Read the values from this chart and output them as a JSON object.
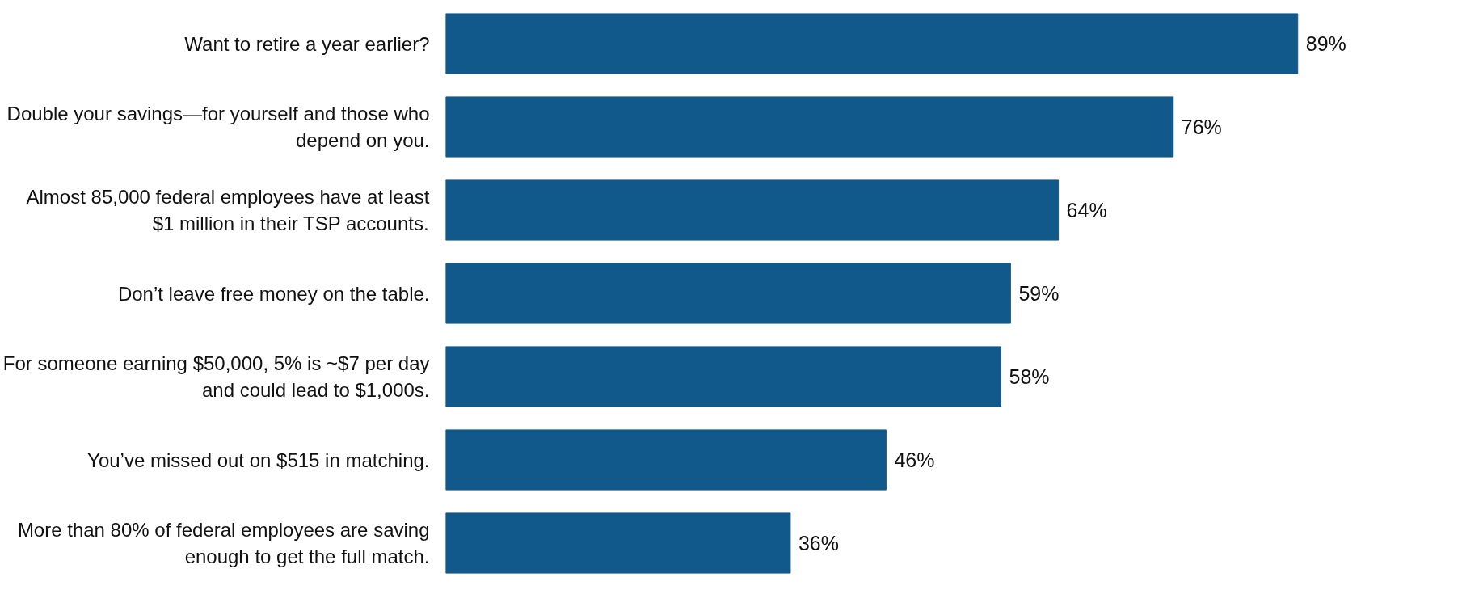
{
  "chart_data": {
    "type": "bar",
    "orientation": "horizontal",
    "color": "#11598a",
    "categories": [
      "Want to retire a year earlier?",
      "Double your savings—for yourself and those who depend on you.",
      "Almost 85,000 federal employees have at least $1 million in their TSP accounts.",
      "Don’t leave free money on the table.",
      "For someone earning $50,000, 5% is ~$7 per day and could lead to $1,000s.",
      "You’ve missed out on $515 in matching.",
      "More than 80% of federal employees are saving enough to get the full match."
    ],
    "values": [
      89,
      76,
      64,
      59,
      58,
      46,
      36
    ],
    "value_labels": [
      "89%",
      "76%",
      "64%",
      "59%",
      "58%",
      "46%",
      "36%"
    ],
    "grid": false
  }
}
